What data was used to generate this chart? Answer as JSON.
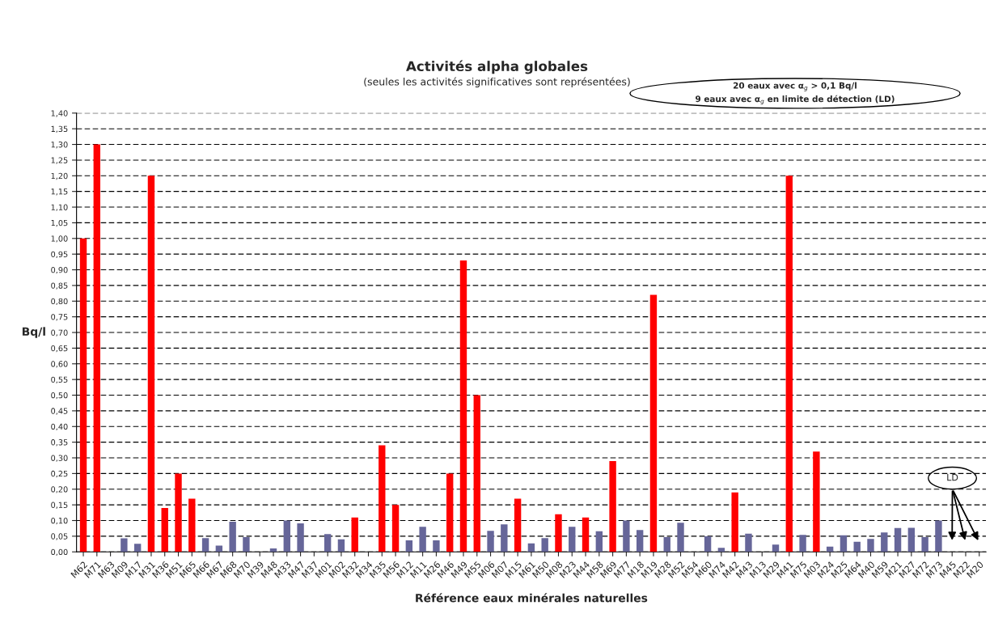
{
  "chart_data": {
    "type": "bar",
    "title": "Activités alpha globales",
    "subtitle": "(seules les activités significatives sont représentées)",
    "xlabel": "Référence eaux minérales naturelles",
    "ylabel": "Bq/l",
    "categories": [
      "M62",
      "M71",
      "M63",
      "M09",
      "M17",
      "M31",
      "M36",
      "M51",
      "M65",
      "M66",
      "M67",
      "M68",
      "M70",
      "M39",
      "M48",
      "M33",
      "M47",
      "M37",
      "M01",
      "M02",
      "M32",
      "M34",
      "M35",
      "M56",
      "M12",
      "M11",
      "M26",
      "M46",
      "M49",
      "M55",
      "M06",
      "M07",
      "M15",
      "M61",
      "M50",
      "M08",
      "M23",
      "M44",
      "M58",
      "M69",
      "M77",
      "M18",
      "M19",
      "M28",
      "M52",
      "M54",
      "M60",
      "M74",
      "M42",
      "M43",
      "M13",
      "M29",
      "M41",
      "M75",
      "M03",
      "M24",
      "M25",
      "M64",
      "M40",
      "M59",
      "M21",
      "M27",
      "M72",
      "M73",
      "M45",
      "M22",
      "M20"
    ],
    "values": [
      1.0,
      1.3,
      null,
      0.043,
      0.026,
      1.2,
      0.14,
      0.25,
      0.17,
      0.044,
      0.02,
      0.096,
      0.047,
      null,
      0.011,
      0.1,
      0.091,
      null,
      0.057,
      0.04,
      0.11,
      null,
      0.34,
      0.15,
      0.037,
      0.08,
      0.037,
      0.25,
      0.93,
      0.5,
      0.067,
      0.088,
      0.17,
      0.027,
      0.044,
      0.12,
      0.08,
      0.11,
      0.066,
      0.29,
      0.1,
      0.07,
      0.82,
      0.047,
      0.093,
      null,
      0.05,
      0.013,
      0.19,
      0.058,
      null,
      0.023,
      1.2,
      0.054,
      0.32,
      0.017,
      0.053,
      0.032,
      0.041,
      0.062,
      0.076,
      0.077,
      0.047,
      0.1,
      null,
      null,
      null
    ],
    "colors": [
      "#ff0000",
      "#ff0000",
      "#666699",
      "#666699",
      "#666699",
      "#ff0000",
      "#ff0000",
      "#ff0000",
      "#ff0000",
      "#666699",
      "#666699",
      "#666699",
      "#666699",
      "#666699",
      "#666699",
      "#666699",
      "#666699",
      "#666699",
      "#666699",
      "#666699",
      "#ff0000",
      "#666699",
      "#ff0000",
      "#ff0000",
      "#666699",
      "#666699",
      "#666699",
      "#ff0000",
      "#ff0000",
      "#ff0000",
      "#666699",
      "#666699",
      "#ff0000",
      "#666699",
      "#666699",
      "#ff0000",
      "#666699",
      "#ff0000",
      "#666699",
      "#ff0000",
      "#666699",
      "#666699",
      "#ff0000",
      "#666699",
      "#666699",
      "#666699",
      "#666699",
      "#666699",
      "#ff0000",
      "#666699",
      "#666699",
      "#666699",
      "#ff0000",
      "#666699",
      "#ff0000",
      "#666699",
      "#666699",
      "#666699",
      "#666699",
      "#666699",
      "#666699",
      "#666699",
      "#666699",
      "#666699",
      "#666699",
      "#666699",
      "#666699"
    ],
    "ylim": [
      0,
      1.4
    ],
    "yticks": [
      {
        "value": 0,
        "label": "0,00"
      },
      {
        "value": 0.05,
        "label": "0,05"
      },
      {
        "value": 0.1,
        "label": "0,10"
      },
      {
        "value": 0.15,
        "label": "0,15"
      },
      {
        "value": 0.2,
        "label": "0,20"
      },
      {
        "value": 0.25,
        "label": "0,25"
      },
      {
        "value": 0.3,
        "label": "0,30"
      },
      {
        "value": 0.35,
        "label": "0,35"
      },
      {
        "value": 0.4,
        "label": "0,40"
      },
      {
        "value": 0.45,
        "label": "0,45"
      },
      {
        "value": 0.5,
        "label": "0,50"
      },
      {
        "value": 0.55,
        "label": "0,55"
      },
      {
        "value": 0.6,
        "label": "0,60"
      },
      {
        "value": 0.65,
        "label": "0,65"
      },
      {
        "value": 0.7,
        "label": "0,70"
      },
      {
        "value": 0.75,
        "label": "0,75"
      },
      {
        "value": 0.8,
        "label": "0,80"
      },
      {
        "value": 0.85,
        "label": "0,85"
      },
      {
        "value": 0.9,
        "label": "0,90"
      },
      {
        "value": 0.95,
        "label": "0,95"
      },
      {
        "value": 1.0,
        "label": "1,00"
      },
      {
        "value": 1.05,
        "label": "1,05"
      },
      {
        "value": 1.1,
        "label": "1,10"
      },
      {
        "value": 1.15,
        "label": "1,15"
      },
      {
        "value": 1.2,
        "label": "1,20"
      },
      {
        "value": 1.25,
        "label": "1,25"
      },
      {
        "value": 1.3,
        "label": "1,30"
      },
      {
        "value": 1.35,
        "label": "1,35"
      },
      {
        "value": 1.4,
        "label": "1,40"
      }
    ],
    "grid": "y",
    "annotations": [
      "20 eaux avec α$_{g}$ > 0,1 Bq/l\n9 eaux avec α$_{g}$ en limite de détection (LD)",
      "LD"
    ]
  }
}
